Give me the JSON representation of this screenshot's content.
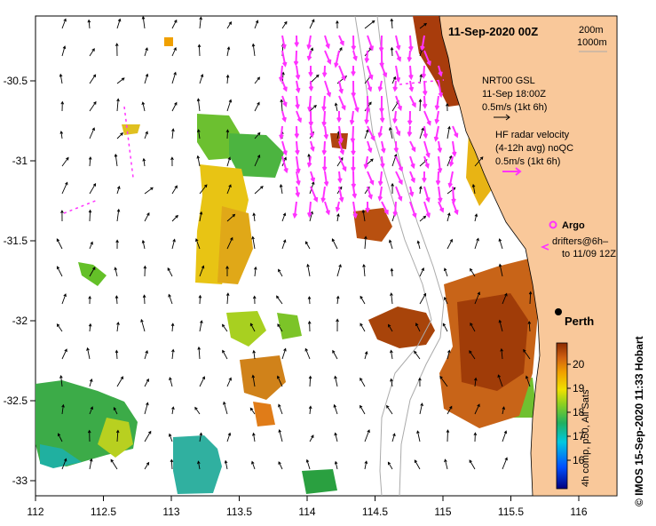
{
  "title": "11-Sep-2020 00Z",
  "isobaths": [
    "200m",
    "1000m"
  ],
  "city": "Perth",
  "gsl_legend": [
    "NRT00 GSL",
    "11-Sep 18:00Z",
    "0.5m/s (1kt 6h)"
  ],
  "hf_legend": [
    "HF radar velocity",
    "(4-12h avg) noQC",
    "0.5m/s (1kt 6h)"
  ],
  "argo_label": "Argo",
  "drifters_legend": [
    "drifters@6h–",
    "to 11/09 12Z"
  ],
  "x_ticks": [
    "112",
    "112.5",
    "113",
    "113.5",
    "114",
    "114.5",
    "115",
    "115.5",
    "116"
  ],
  "y_ticks": [
    "-30.5",
    "-31",
    "-31.5",
    "-32",
    "-32.5",
    "-33"
  ],
  "colorbar": {
    "ticks": [
      "20",
      "19",
      "18",
      "17",
      "16"
    ],
    "label": "4h comp, p50, All Sats"
  },
  "credit": "© IMOS 15-Sep-2020 11:33 Hobart",
  "colors": {
    "land": "#f9c89a",
    "gsl_arrows": "#000000",
    "hf_arrows": "#ff33ff",
    "cold": "#2e8b57",
    "warm": "#8b3a0f"
  }
}
